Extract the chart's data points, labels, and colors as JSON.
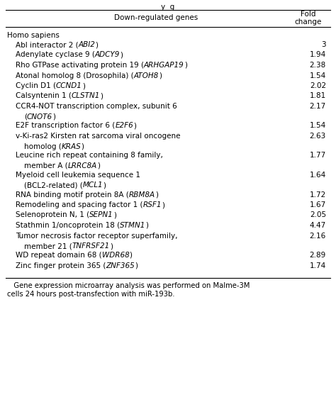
{
  "header_col1": "Down-regulated genes",
  "header_col2_line1": "Fold",
  "header_col2_line2": "change",
  "section": "Homo sapiens",
  "rows": [
    {
      "parts": [
        [
          "Abl interactor 2 (",
          false
        ],
        [
          "ABI2",
          true
        ],
        [
          ")",
          false
        ]
      ],
      "fold": "3",
      "multiline": false
    },
    {
      "parts": [
        [
          "Adenylate cyclase 9 (",
          false
        ],
        [
          "ADCY9",
          true
        ],
        [
          ")",
          false
        ]
      ],
      "fold": "1.94",
      "multiline": false
    },
    {
      "parts": [
        [
          "Rho GTPase activating protein 19 (",
          false
        ],
        [
          "ARHGAP19",
          true
        ],
        [
          ")",
          false
        ]
      ],
      "fold": "2.38",
      "multiline": false
    },
    {
      "parts": [
        [
          "Atonal homolog 8 (Drosophila) (",
          false
        ],
        [
          "ATOH8",
          true
        ],
        [
          ")",
          false
        ]
      ],
      "fold": "1.54",
      "multiline": false
    },
    {
      "parts": [
        [
          "Cyclin D1 (",
          false
        ],
        [
          "CCND1",
          true
        ],
        [
          ")",
          false
        ]
      ],
      "fold": "2.02",
      "multiline": false
    },
    {
      "parts": [
        [
          "Calsyntenin 1 (",
          false
        ],
        [
          "CLSTN1",
          true
        ],
        [
          ")",
          false
        ]
      ],
      "fold": "1.81",
      "multiline": false
    },
    {
      "line1_parts": [
        [
          "CCR4-NOT transcription complex, subunit 6",
          false
        ]
      ],
      "line2_parts": [
        [
          "(",
          false
        ],
        [
          "CNOT6",
          true
        ],
        [
          ")",
          false
        ]
      ],
      "fold": "2.17",
      "multiline": true,
      "line2_indent": true
    },
    {
      "parts": [
        [
          "E2F transcription factor 6 (",
          false
        ],
        [
          "E2F6",
          true
        ],
        [
          ")",
          false
        ]
      ],
      "fold": "1.54",
      "multiline": false
    },
    {
      "line1_parts": [
        [
          "v-Ki-ras2 Kirsten rat sarcoma viral oncogene",
          false
        ]
      ],
      "line2_parts": [
        [
          "homolog (",
          false
        ],
        [
          "KRAS",
          true
        ],
        [
          ")",
          false
        ]
      ],
      "fold": "2.63",
      "multiline": true,
      "line2_indent": true
    },
    {
      "line1_parts": [
        [
          "Leucine rich repeat containing 8 family,",
          false
        ]
      ],
      "line2_parts": [
        [
          "member A (",
          false
        ],
        [
          "LRRC8A",
          true
        ],
        [
          ")",
          false
        ]
      ],
      "fold": "1.77",
      "multiline": true,
      "line2_indent": true
    },
    {
      "line1_parts": [
        [
          "Myeloid cell leukemia sequence 1",
          false
        ]
      ],
      "line2_parts": [
        [
          "(BCL2-related) (",
          false
        ],
        [
          "MCL1",
          true
        ],
        [
          ")",
          false
        ]
      ],
      "fold": "1.64",
      "multiline": true,
      "line2_indent": true
    },
    {
      "parts": [
        [
          "RNA binding motif protein 8A (",
          false
        ],
        [
          "RBM8A",
          true
        ],
        [
          ")",
          false
        ]
      ],
      "fold": "1.72",
      "multiline": false
    },
    {
      "parts": [
        [
          "Remodeling and spacing factor 1 (",
          false
        ],
        [
          "RSF1",
          true
        ],
        [
          ")",
          false
        ]
      ],
      "fold": "1.67",
      "multiline": false
    },
    {
      "parts": [
        [
          "Selenoprotein N, 1 (",
          false
        ],
        [
          "SEPN1",
          true
        ],
        [
          ")",
          false
        ]
      ],
      "fold": "2.05",
      "multiline": false
    },
    {
      "parts": [
        [
          "Stathmin 1/oncoprotein 18 (",
          false
        ],
        [
          "STMN1",
          true
        ],
        [
          ")",
          false
        ]
      ],
      "fold": "4.47",
      "multiline": false
    },
    {
      "line1_parts": [
        [
          "Tumor necrosis factor receptor superfamily,",
          false
        ]
      ],
      "line2_parts": [
        [
          "member 21 (",
          false
        ],
        [
          "TNFRSF21",
          true
        ],
        [
          ")",
          false
        ]
      ],
      "fold": "2.16",
      "multiline": true,
      "line2_indent": true
    },
    {
      "parts": [
        [
          "WD repeat domain 68 (",
          false
        ],
        [
          "WDR68",
          true
        ],
        [
          ")",
          false
        ]
      ],
      "fold": "2.89",
      "multiline": false
    },
    {
      "parts": [
        [
          "Zinc finger protein 365 (",
          false
        ],
        [
          "ZNF365",
          true
        ],
        [
          ")",
          false
        ]
      ],
      "fold": "1.74",
      "multiline": false
    }
  ],
  "footnote_line1": "   Gene expression microarray analysis was performed on Malme-3M",
  "footnote_line2": "cells 24 hours post-transfection with miR-193b.",
  "bg_color": "#ffffff",
  "text_color": "#000000",
  "font_size": 7.5,
  "fig_width": 4.74,
  "fig_height": 5.67,
  "dpi": 100
}
